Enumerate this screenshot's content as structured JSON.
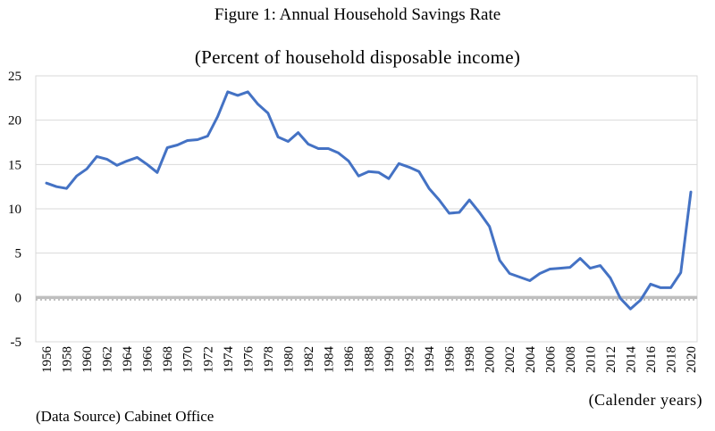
{
  "chart_data": {
    "type": "line",
    "title": "Figure 1: Annual Household Savings Rate",
    "subtitle": "(Percent of household disposable income)",
    "xlabel": "(Calender years)",
    "ylabel": "",
    "source": "(Data Source) Cabinet Office",
    "ylim": [
      -5,
      25
    ],
    "yticks": [
      -5,
      0,
      5,
      10,
      15,
      20,
      25
    ],
    "xlim": [
      1956,
      2020
    ],
    "xticks": [
      1956,
      1958,
      1960,
      1962,
      1964,
      1966,
      1968,
      1970,
      1972,
      1974,
      1976,
      1978,
      1980,
      1982,
      1984,
      1986,
      1988,
      1990,
      1992,
      1994,
      1996,
      1998,
      2000,
      2002,
      2004,
      2006,
      2008,
      2010,
      2012,
      2014,
      2016,
      2018,
      2020
    ],
    "grid": "horizontal",
    "line_color": "#4472c4",
    "zero_line_color": "#bfbfbf",
    "series": [
      {
        "x": [
          1956,
          1957,
          1958,
          1959,
          1960,
          1961,
          1962,
          1963,
          1964,
          1965,
          1966,
          1967,
          1968,
          1969,
          1970,
          1971,
          1972,
          1973,
          1974,
          1975,
          1976,
          1977,
          1978,
          1979,
          1980,
          1981,
          1982,
          1983,
          1984,
          1985,
          1986,
          1987,
          1988,
          1989,
          1990,
          1991,
          1992,
          1993,
          1994,
          1995,
          1996,
          1997,
          1998,
          1999,
          2000,
          2001,
          2002,
          2003,
          2004,
          2005,
          2006,
          2007,
          2008,
          2009,
          2010,
          2011,
          2012,
          2013,
          2014,
          2015,
          2016,
          2017,
          2018,
          2019,
          2020
        ],
        "values": [
          12.9,
          12.5,
          12.3,
          13.7,
          14.5,
          15.9,
          15.6,
          14.9,
          15.4,
          15.8,
          15.0,
          14.1,
          16.9,
          17.2,
          17.7,
          17.8,
          18.2,
          20.4,
          23.2,
          22.8,
          23.2,
          21.8,
          20.8,
          18.1,
          17.6,
          18.6,
          17.3,
          16.8,
          16.8,
          16.3,
          15.4,
          13.7,
          14.2,
          14.1,
          13.4,
          15.1,
          14.7,
          14.2,
          12.3,
          11.0,
          9.5,
          9.6,
          11.0,
          9.6,
          8.0,
          4.2,
          2.7,
          2.3,
          1.9,
          2.7,
          3.2,
          3.3,
          3.4,
          4.4,
          3.3,
          3.6,
          2.2,
          -0.1,
          -1.3,
          -0.3,
          1.5,
          1.1,
          1.1,
          2.8,
          11.9
        ]
      }
    ]
  }
}
